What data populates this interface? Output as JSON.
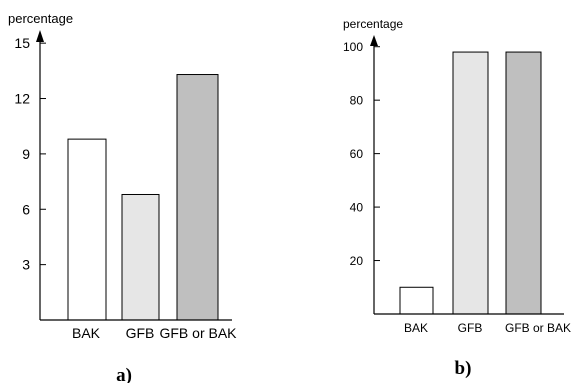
{
  "chart_data": [
    {
      "type": "bar",
      "panel_label": "a)",
      "ylabel": "percentage",
      "categories": [
        "BAK",
        "GFB",
        "GFB or BAK"
      ],
      "values": [
        9.8,
        6.8,
        13.3
      ],
      "yticks": [
        "3",
        "6",
        "9",
        "12",
        "15"
      ],
      "ylim": [
        0,
        16.2
      ],
      "bar_colors": [
        "#ffffff",
        "#e6e6e6",
        "#bfbfbf"
      ]
    },
    {
      "type": "bar",
      "panel_label": "b)",
      "ylabel": "percentage",
      "categories": [
        "BAK",
        "GFB",
        "GFB or BAK"
      ],
      "values": [
        10,
        98,
        98
      ],
      "yticks": [
        "20",
        "40",
        "60",
        "80",
        "100"
      ],
      "ylim": [
        0,
        107
      ],
      "bar_colors": [
        "#ffffff",
        "#e6e6e6",
        "#bfbfbf"
      ]
    }
  ]
}
